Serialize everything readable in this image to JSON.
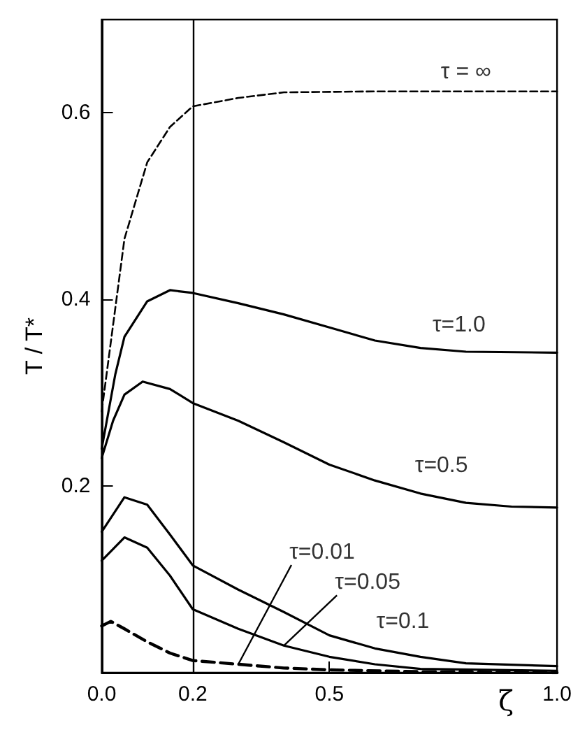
{
  "chart_data": {
    "type": "line",
    "xlabel": "ζ",
    "ylabel": "T / T*",
    "xlim": [
      0,
      1
    ],
    "xticks": [
      {
        "value": 0,
        "label": "0.0"
      },
      0.2,
      0.5,
      {
        "value": 1,
        "label": "1.0"
      }
    ],
    "ylim": [
      0,
      0.7
    ],
    "yticks": [
      0.2,
      0.4,
      0.6
    ],
    "grid": false,
    "marker": "none",
    "series": [
      {
        "color": "#000000",
        "line_style": "dashed",
        "x": [
          0,
          0.05,
          0.1,
          0.15,
          0.2,
          0.3,
          0.4,
          0.6,
          0.8,
          1.0
        ],
        "values": [
          0.28,
          0.465,
          0.547,
          0.585,
          0.607,
          0.616,
          0.622,
          0.623,
          0.623,
          0.623
        ]
      },
      {
        "color": "#000000",
        "line_style": "solid",
        "x": [
          0,
          0.03,
          0.05,
          0.1,
          0.15,
          0.2,
          0.3,
          0.4,
          0.5,
          0.6,
          0.7,
          0.8,
          1.0
        ],
        "values": [
          0.24,
          0.32,
          0.36,
          0.398,
          0.41,
          0.407,
          0.396,
          0.384,
          0.37,
          0.356,
          0.348,
          0.344,
          0.343
        ]
      },
      {
        "color": "#000000",
        "line_style": "solid",
        "x": [
          0,
          0.025,
          0.05,
          0.09,
          0.15,
          0.2,
          0.3,
          0.4,
          0.5,
          0.6,
          0.7,
          0.8,
          0.9,
          1.0
        ],
        "values": [
          0.23,
          0.27,
          0.298,
          0.312,
          0.304,
          0.289,
          0.27,
          0.247,
          0.223,
          0.206,
          0.192,
          0.182,
          0.178,
          0.177
        ]
      },
      {
        "color": "#000000",
        "line_style": "solid",
        "x": [
          0,
          0.05,
          0.1,
          0.15,
          0.2,
          0.3,
          0.4,
          0.5,
          0.6,
          0.7,
          0.8,
          1.0
        ],
        "values": [
          0.151,
          0.188,
          0.18,
          0.148,
          0.115,
          0.089,
          0.065,
          0.04,
          0.026,
          0.017,
          0.01,
          0.007
        ]
      },
      {
        "color": "#000000",
        "line_style": "solid",
        "x": [
          0,
          0.05,
          0.1,
          0.15,
          0.2,
          0.3,
          0.4,
          0.5,
          0.6,
          0.7,
          1.0
        ],
        "values": [
          0.12,
          0.145,
          0.134,
          0.104,
          0.068,
          0.047,
          0.029,
          0.017,
          0.009,
          0.004,
          0.002
        ]
      },
      {
        "color": "#000000",
        "line_style": "dashed",
        "x": [
          0,
          0.02,
          0.05,
          0.1,
          0.15,
          0.2,
          0.3,
          0.4,
          0.5,
          0.7,
          1.0
        ],
        "values": [
          0.05,
          0.055,
          0.047,
          0.033,
          0.021,
          0.013,
          0.009,
          0.005,
          0.003,
          0.001,
          0
        ]
      }
    ],
    "ref_lines": [
      {
        "axis": "x",
        "value": 0.2,
        "color": "#000000",
        "line_style": "solid"
      }
    ],
    "annotations": [
      {
        "text": "τ = ∞",
        "x": 0.8,
        "y": 0.623
      },
      {
        "text": "τ=1.0",
        "x": 0.8,
        "y": 0.344
      },
      {
        "text": "τ=0.5",
        "x": 0.7,
        "y": 0.192
      },
      {
        "text": "τ=0.01",
        "x": 0.3,
        "y": 0.009
      },
      {
        "text": "τ=0.05",
        "x": 0.4,
        "y": 0.029
      },
      {
        "text": "τ=0.1",
        "x": 0.6,
        "y": 0.026
      }
    ]
  }
}
